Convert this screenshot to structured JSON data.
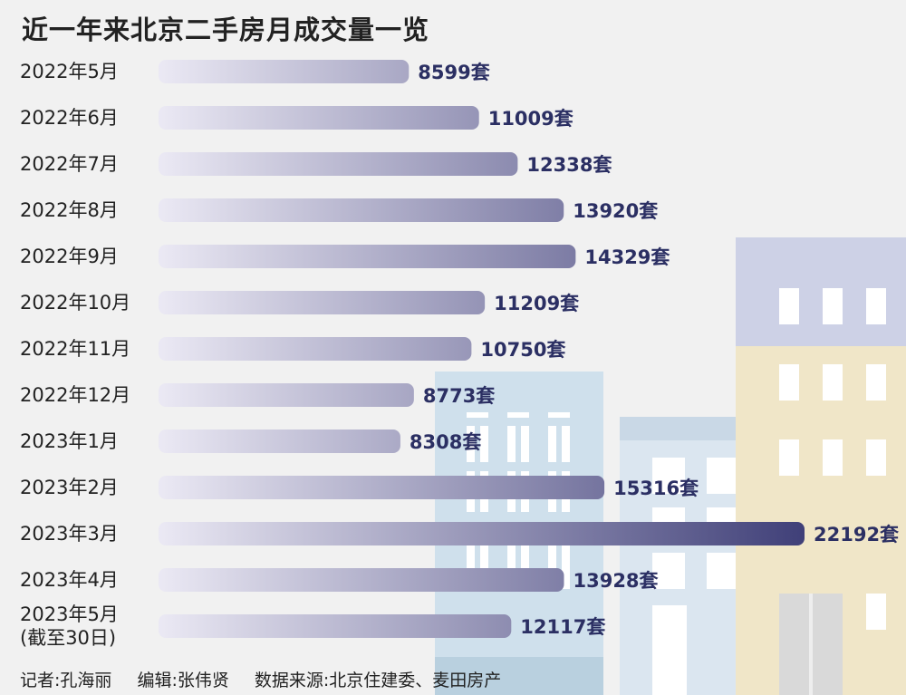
{
  "title": "近一年来北京二手房月成交量一览",
  "credits": {
    "reporter": "记者:孔海丽",
    "editor": "编辑:张伟贤",
    "source": "数据来源:北京住建委、麦田房产"
  },
  "colors": {
    "bar_start": "#ebe9f4",
    "bar_end": "#3f3f78",
    "value_text": "#2b2f63",
    "label_text": "#222222"
  },
  "chart_data": {
    "type": "bar",
    "orientation": "horizontal",
    "title": "近一年来北京二手房月成交量一览",
    "unit": "套",
    "categories": [
      "2022年5月",
      "2022年6月",
      "2022年7月",
      "2022年8月",
      "2022年9月",
      "2022年10月",
      "2022年11月",
      "2022年12月",
      "2023年1月",
      "2023年2月",
      "2023年3月",
      "2023年4月",
      "2023年5月"
    ],
    "category_notes": [
      "",
      "",
      "",
      "",
      "",
      "",
      "",
      "",
      "",
      "",
      "",
      "",
      "(截至30日)"
    ],
    "values": [
      8599,
      11009,
      12338,
      13920,
      14329,
      11209,
      10750,
      8773,
      8308,
      15316,
      22192,
      13928,
      12117
    ],
    "value_labels": [
      "8599套",
      "11009套",
      "12338套",
      "13920套",
      "14329套",
      "11209套",
      "10750套",
      "8773套",
      "8308套",
      "15316套",
      "22192套",
      "13928套",
      "12117套"
    ],
    "xlim": [
      0,
      22192
    ],
    "grid": false,
    "legend": false
  }
}
